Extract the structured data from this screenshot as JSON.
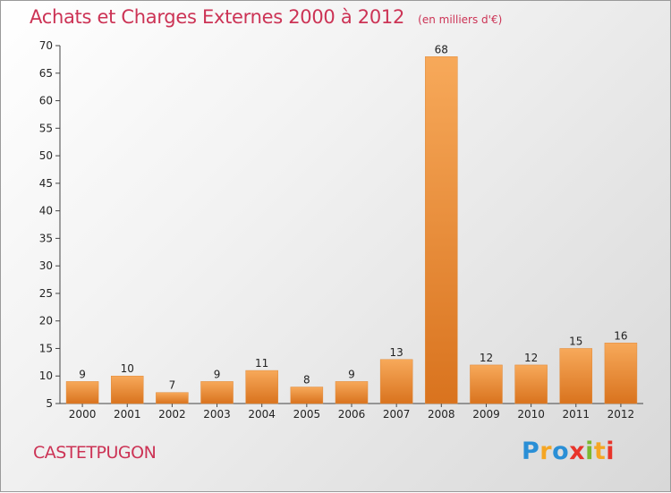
{
  "title": "Achats et Charges Externes 2000 à 2012",
  "subtitle": "(en milliers d'€)",
  "place": "CASTETPUGON",
  "logo": {
    "letters": [
      "P",
      "r",
      "o",
      "x",
      "i",
      "t",
      "i"
    ],
    "colors": [
      "#2a8fd6",
      "#f5a623",
      "#2a8fd6",
      "#e8342a",
      "#7cb82f",
      "#f5a623",
      "#e8342a"
    ]
  },
  "colors": {
    "bar_light": "#f7a95a",
    "bar_dark": "#d9731e",
    "title": "#cc3355"
  },
  "chart_data": {
    "type": "bar",
    "categories": [
      "2000",
      "2001",
      "2002",
      "2003",
      "2004",
      "2005",
      "2006",
      "2007",
      "2008",
      "2009",
      "2010",
      "2011",
      "2012"
    ],
    "values": [
      9,
      10,
      7,
      9,
      11,
      8,
      9,
      13,
      68,
      12,
      12,
      15,
      16
    ],
    "ylim": [
      5,
      70
    ],
    "yticks": [
      5,
      10,
      15,
      20,
      25,
      30,
      35,
      40,
      45,
      50,
      55,
      60,
      65,
      70
    ],
    "grid": false,
    "title": "Achats et Charges Externes 2000 à 2012",
    "xlabel": "",
    "ylabel": ""
  }
}
